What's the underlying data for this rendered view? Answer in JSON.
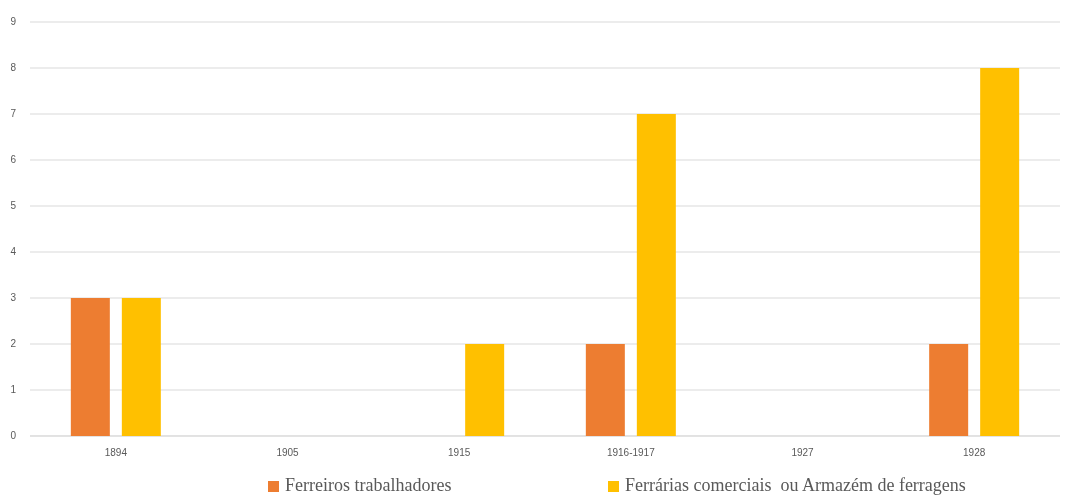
{
  "chart_data": {
    "type": "bar",
    "categories": [
      "1894",
      "1905",
      "1915",
      "1916-1917",
      "1927",
      "1928"
    ],
    "series": [
      {
        "name": "Ferreiros trabalhadores",
        "color": "#ed7d31",
        "values": [
          3,
          0,
          0,
          2,
          0,
          2
        ]
      },
      {
        "name": "Ferrárias comerciais  ou Armazém de ferragens",
        "color": "#ffc000",
        "values": [
          3,
          0,
          2,
          7,
          0,
          8
        ]
      }
    ],
    "ylim": [
      0,
      9
    ],
    "yticks": [
      0,
      1,
      2,
      3,
      4,
      5,
      6,
      7,
      8,
      9
    ],
    "grid": "y",
    "legend": "bottom"
  }
}
